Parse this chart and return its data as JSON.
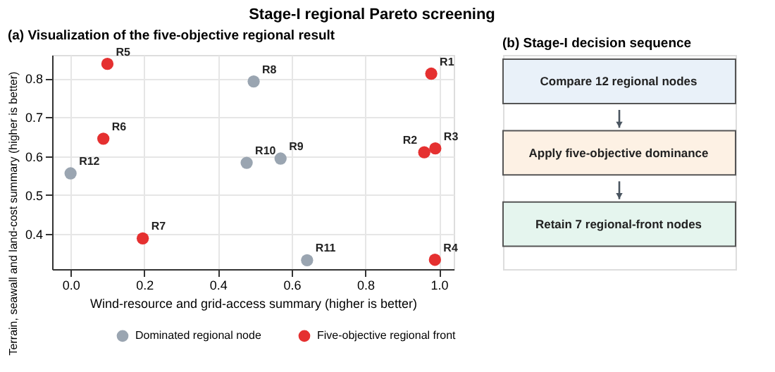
{
  "chart_data": [
    {
      "type": "scatter",
      "title": "Stage-I regional Pareto screening",
      "subtitle": "(a) Visualization of the five-objective regional result",
      "xlabel": "Wind-resource and grid-access summary (higher is better)",
      "ylabel": "Terrain, seawall and land-cost summary (higher is better)",
      "series": [
        {
          "name": "Dominated regional node",
          "color": "#9aa5b1",
          "x": [
            0.497,
            0.57,
            0.478,
            0.642,
            0.0
          ],
          "values": [
            0.792,
            0.594,
            0.583,
            0.333,
            0.556
          ]
        },
        {
          "name": "Five-objective regional front",
          "color": "#e53030",
          "x": [
            0.979,
            0.96,
            0.99,
            0.989,
            0.1,
            0.089,
            0.196
          ],
          "values": [
            0.812,
            0.61,
            0.62,
            0.334,
            0.837,
            0.645,
            0.389
          ]
        }
      ],
      "annotations": [
        {
          "text": "R1",
          "x": 0.979,
          "y": 0.812
        },
        {
          "text": "R2",
          "x": 0.96,
          "y": 0.61
        },
        {
          "text": "R3",
          "x": 0.99,
          "y": 0.62
        },
        {
          "text": "R4",
          "x": 0.989,
          "y": 0.334
        },
        {
          "text": "R5",
          "x": 0.1,
          "y": 0.837
        },
        {
          "text": "R6",
          "x": 0.089,
          "y": 0.645
        },
        {
          "text": "R7",
          "x": 0.196,
          "y": 0.389
        },
        {
          "text": "R8",
          "x": 0.497,
          "y": 0.792
        },
        {
          "text": "R9",
          "x": 0.57,
          "y": 0.594
        },
        {
          "text": "R10",
          "x": 0.478,
          "y": 0.583
        },
        {
          "text": "R11",
          "x": 0.642,
          "y": 0.333
        },
        {
          "text": "R12",
          "x": 0.0,
          "y": 0.556
        }
      ],
      "xlim": [
        -0.05,
        1.04
      ],
      "ylim": [
        0.31,
        0.86
      ],
      "xticks": [
        {
          "value": 0,
          "label": "0.0"
        },
        0.2,
        0.4,
        0.6,
        0.8,
        {
          "value": 1,
          "label": "1.0"
        }
      ],
      "yticks": [
        0.4,
        0.5,
        0.6,
        0.7,
        0.8
      ],
      "grid": true,
      "legend": "bottom",
      "marker": "circle"
    },
    {
      "type": "other",
      "title": "(b) Stage-I decision sequence",
      "annotations": [
        "Compare 12 regional nodes",
        "Apply five-objective dominance",
        "Retain 7 regional-front nodes"
      ]
    }
  ]
}
